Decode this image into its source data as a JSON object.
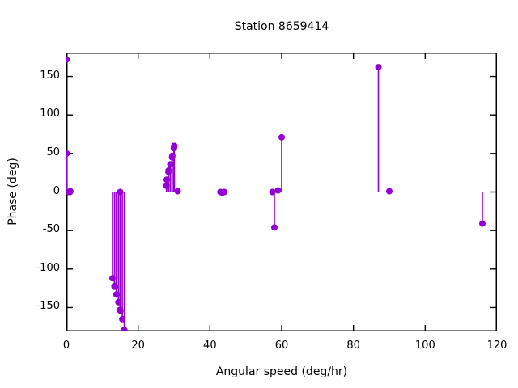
{
  "window": {
    "background": "#ffffff"
  },
  "chart_data": {
    "type": "stem",
    "title": "Station 8659414",
    "xlabel": "Angular speed (deg/hr)",
    "ylabel": "Phase (deg)",
    "xlim": [
      0,
      120
    ],
    "ylim": [
      -181,
      181
    ],
    "xticks": [
      0,
      20,
      40,
      60,
      80,
      100,
      120
    ],
    "yticks": [
      -150,
      -100,
      -50,
      0,
      50,
      100,
      150
    ],
    "legend": "none",
    "grid": "dotted-zero-line-only",
    "series_color": "#9400d3",
    "zero_line_color": "#909090",
    "border_color": "#000000",
    "points": [
      {
        "x": 0.041,
        "y": 172,
        "stem": false
      },
      {
        "x": 0.082,
        "y": 50
      },
      {
        "x": 0.544,
        "y": 0
      },
      {
        "x": 1.016,
        "y": 0
      },
      {
        "x": 1.098,
        "y": 1
      },
      {
        "x": 12.854,
        "y": -112
      },
      {
        "x": 13.399,
        "y": -122
      },
      {
        "x": 13.472,
        "y": -123
      },
      {
        "x": 13.943,
        "y": -133
      },
      {
        "x": 14.497,
        "y": -143
      },
      {
        "x": 14.959,
        "y": -153
      },
      {
        "x": 15.0,
        "y": 0
      },
      {
        "x": 15.041,
        "y": -154
      },
      {
        "x": 15.585,
        "y": -165
      },
      {
        "x": 16.139,
        "y": -179
      },
      {
        "x": 27.895,
        "y": 8
      },
      {
        "x": 27.968,
        "y": 16
      },
      {
        "x": 28.44,
        "y": 26
      },
      {
        "x": 28.513,
        "y": 28
      },
      {
        "x": 28.984,
        "y": 36
      },
      {
        "x": 29.456,
        "y": 45
      },
      {
        "x": 29.528,
        "y": 47
      },
      {
        "x": 29.959,
        "y": 57
      },
      {
        "x": 30.041,
        "y": 59
      },
      {
        "x": 30.082,
        "y": 60
      },
      {
        "x": 31.016,
        "y": 1
      },
      {
        "x": 42.927,
        "y": 0
      },
      {
        "x": 43.476,
        "y": -1
      },
      {
        "x": 44.025,
        "y": 0
      },
      {
        "x": 57.423,
        "y": 0
      },
      {
        "x": 57.968,
        "y": -46
      },
      {
        "x": 58.984,
        "y": 2
      },
      {
        "x": 60.0,
        "y": 71
      },
      {
        "x": 86.952,
        "y": 162
      },
      {
        "x": 90.0,
        "y": 1
      },
      {
        "x": 115.936,
        "y": -41
      }
    ]
  }
}
